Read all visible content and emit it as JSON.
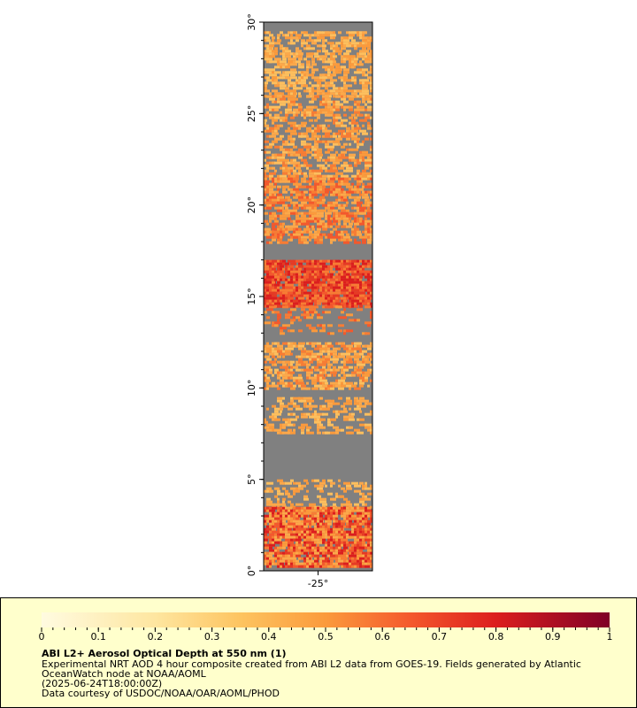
{
  "map": {
    "ylim": [
      0,
      30
    ],
    "xlim": [
      -28,
      -22
    ],
    "yticks": [
      {
        "value": 0,
        "label": "0°"
      },
      {
        "value": 5,
        "label": "5°"
      },
      {
        "value": 10,
        "label": "10°"
      },
      {
        "value": 15,
        "label": "15°"
      },
      {
        "value": 20,
        "label": "20°"
      },
      {
        "value": 25,
        "label": "25°"
      },
      {
        "value": 30,
        "label": "30°"
      }
    ],
    "xticks": [
      {
        "value": -25,
        "label": "-25°"
      }
    ]
  },
  "colorbar": {
    "range": [
      0,
      1
    ],
    "ticks": [
      0,
      0.1,
      0.2,
      0.3,
      0.4,
      0.5,
      0.6,
      0.7,
      0.8,
      0.9,
      1
    ]
  },
  "legend": {
    "title": "ABI L2+ Aerosol Optical Depth at 550 nm (1)",
    "lines": [
      "Experimental NRT AOD 4 hour composite created from ABI L2 data from GOES-19. Fields generated by Atlantic",
      "OceanWatch node at NOAA/AOML",
      "(2025-06-24T18:00:00Z)",
      "Data courtesy of USDOC/NOAA/OAR/AOML/PHOD"
    ]
  }
}
